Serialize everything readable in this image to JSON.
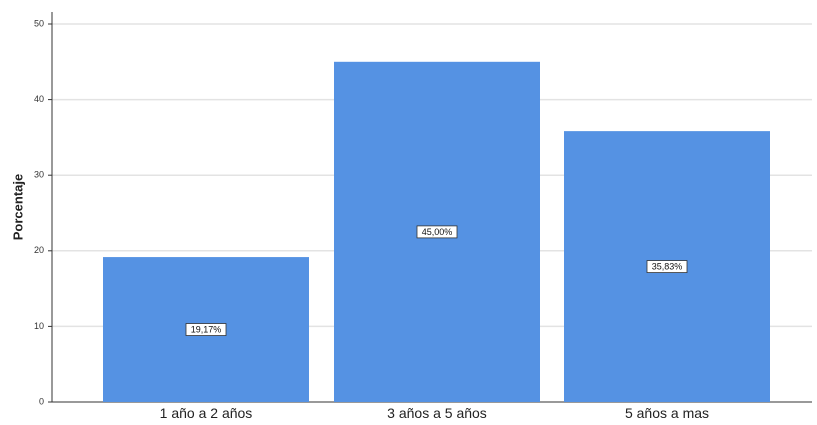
{
  "chart_data": {
    "type": "bar",
    "categories": [
      "1 año a 2 años",
      "3 años a 5 años",
      "5 años a mas"
    ],
    "values": [
      19.17,
      45.0,
      35.83
    ],
    "data_labels": [
      "19,17%",
      "45,00%",
      "35,83%"
    ],
    "ylabel": "Porcentaje",
    "xlabel": "",
    "ylim": [
      0,
      50
    ],
    "yticks": [
      0,
      10,
      20,
      30,
      40,
      50
    ],
    "grid": true,
    "bar_color": "#5592e3",
    "grid_color": "#e3e3e3"
  }
}
